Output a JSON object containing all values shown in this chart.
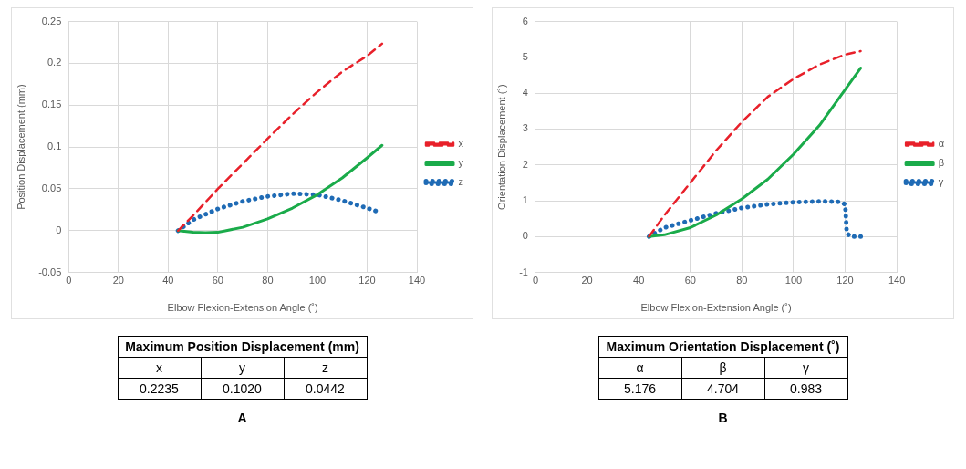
{
  "chart_data": [
    {
      "type": "line",
      "xlabel": "Elbow Flexion-Extension Angle (˚)",
      "ylabel": "Position Displacement (mm)",
      "xlim": [
        0,
        140
      ],
      "xticks": [
        0,
        20,
        40,
        60,
        80,
        100,
        120,
        140
      ],
      "ylim": [
        -0.05,
        0.25
      ],
      "yticks": [
        -0.05,
        0,
        0.05,
        0.1,
        0.15,
        0.2,
        0.25
      ],
      "grid": true,
      "legend": "right",
      "marker": "none",
      "series": [
        {
          "name": "x",
          "color": "#e8202a",
          "line_style": "dashed",
          "x": [
            44,
            50,
            60,
            70,
            80,
            90,
            100,
            110,
            120,
            126
          ],
          "values": [
            0,
            0.018,
            0.05,
            0.08,
            0.11,
            0.139,
            0.166,
            0.19,
            0.209,
            0.2235
          ]
        },
        {
          "name": "y",
          "color": "#1aab4a",
          "line_style": "solid",
          "x": [
            44,
            50,
            55,
            60,
            70,
            80,
            90,
            100,
            110,
            120,
            126
          ],
          "values": [
            0,
            -0.002,
            -0.0025,
            -0.002,
            0.004,
            0.014,
            0.027,
            0.043,
            0.063,
            0.087,
            0.102
          ]
        },
        {
          "name": "z",
          "color": "#1f6bb5",
          "line_style": "dotted",
          "x": [
            44,
            50,
            60,
            70,
            80,
            90,
            100,
            110,
            120,
            125
          ],
          "values": [
            0,
            0.013,
            0.026,
            0.035,
            0.041,
            0.0442,
            0.043,
            0.036,
            0.027,
            0.022
          ]
        }
      ],
      "annotations": [
        "Maximum Position Displacement (mm)",
        "x",
        "y",
        "z",
        "0.2235",
        "0.1020",
        "0.0442",
        "A"
      ]
    },
    {
      "type": "line",
      "xlabel": "Elbow Flexion-Extension Angle (˚)",
      "ylabel": "Orientation Displacement (˚)",
      "xlim": [
        0,
        140
      ],
      "xticks": [
        0,
        20,
        40,
        60,
        80,
        100,
        120,
        140
      ],
      "ylim": [
        -1,
        6
      ],
      "yticks": [
        -1,
        0,
        1,
        2,
        3,
        4,
        5,
        6
      ],
      "grid": true,
      "legend": "right",
      "marker": "none",
      "series": [
        {
          "name": "α",
          "color": "#e8202a",
          "line_style": "dashed",
          "x": [
            44,
            50,
            60,
            70,
            80,
            90,
            100,
            110,
            120,
            126
          ],
          "values": [
            0,
            0.6,
            1.5,
            2.4,
            3.2,
            3.9,
            4.4,
            4.8,
            5.08,
            5.176
          ]
        },
        {
          "name": "β",
          "color": "#1aab4a",
          "line_style": "solid",
          "x": [
            44,
            50,
            60,
            70,
            80,
            90,
            100,
            110,
            120,
            126
          ],
          "values": [
            0,
            0.05,
            0.25,
            0.6,
            1.05,
            1.6,
            2.3,
            3.1,
            4.1,
            4.704
          ]
        },
        {
          "name": "γ",
          "color": "#1f6bb5",
          "line_style": "dotted",
          "x": [
            44,
            50,
            60,
            70,
            80,
            90,
            100,
            110,
            118,
            120,
            120.3,
            120.6,
            122,
            126
          ],
          "values": [
            0,
            0.25,
            0.45,
            0.65,
            0.8,
            0.9,
            0.96,
            0.983,
            0.97,
            0.9,
            0.5,
            0.1,
            0,
            0
          ]
        }
      ],
      "annotations": [
        "Maximum Orientation Displacement (˚)",
        "α",
        "β",
        "γ",
        "5.176",
        "4.704",
        "0.983",
        "B"
      ]
    }
  ]
}
